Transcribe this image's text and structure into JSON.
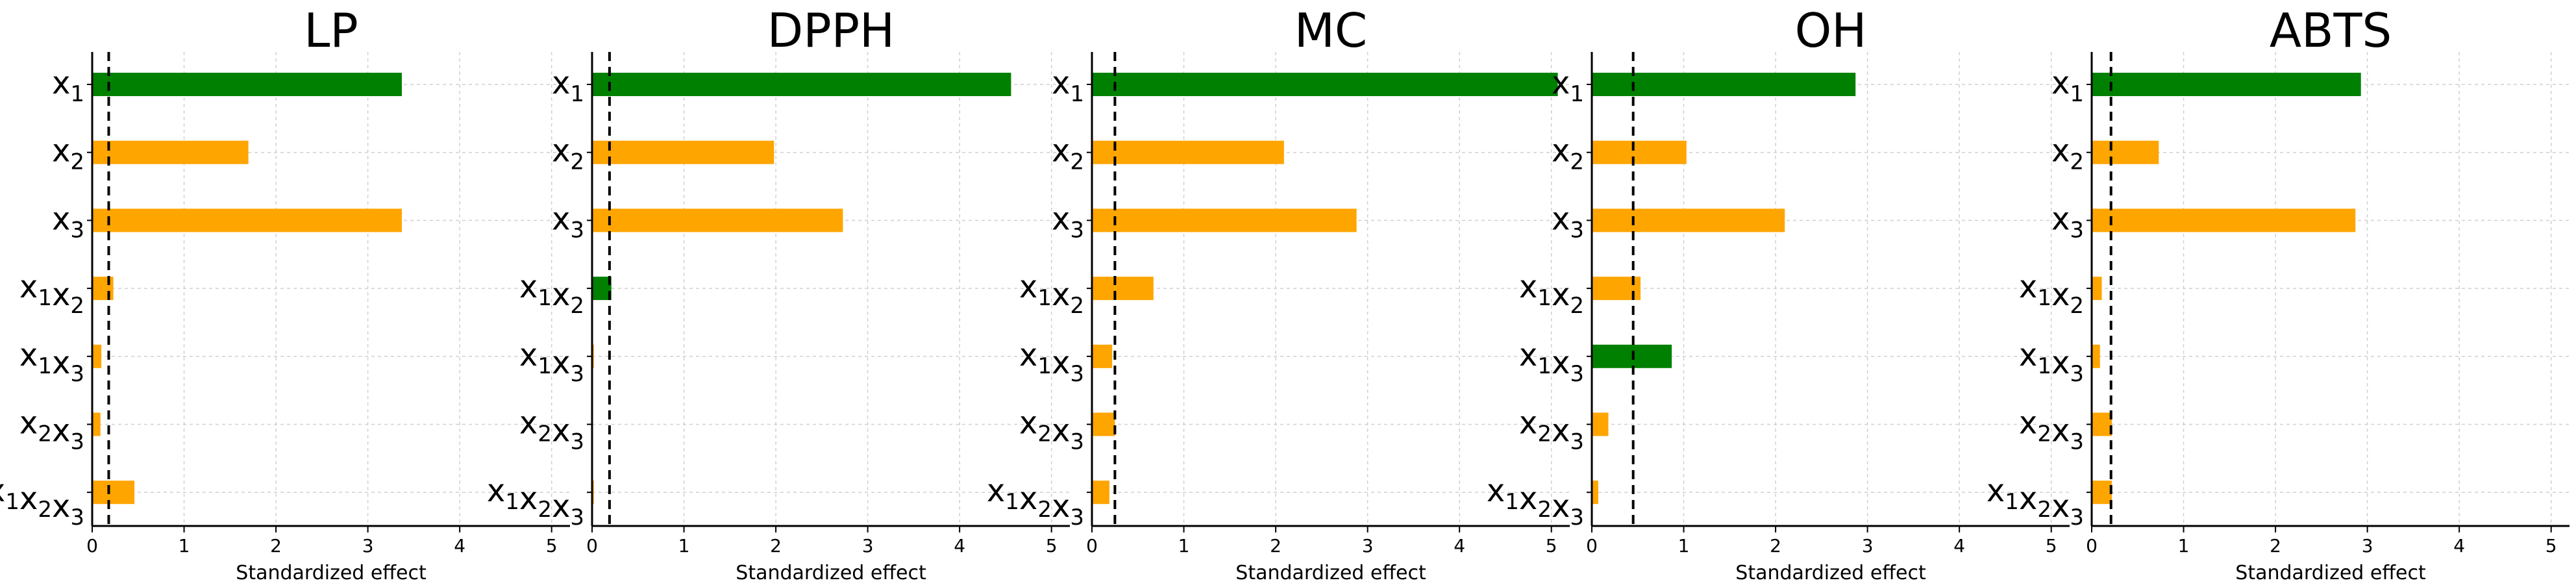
{
  "colors": {
    "significant": "#008000",
    "not_significant": "#FFA500",
    "grid": "#d0d0d0",
    "axis": "#000000",
    "threshold_line": "#000000"
  },
  "chart_data": [
    {
      "type": "bar",
      "orientation": "horizontal",
      "title": "LP",
      "xlabel": "Standardized effect",
      "ylabel": "",
      "xlim": [
        0,
        5.2
      ],
      "xticks": [
        0,
        1,
        2,
        3,
        4,
        5
      ],
      "grid": true,
      "threshold": 0.18,
      "categories": [
        {
          "base": "x",
          "subs": [
            "1"
          ]
        },
        {
          "base": "x",
          "subs": [
            "2"
          ]
        },
        {
          "base": "x",
          "subs": [
            "3"
          ]
        },
        {
          "base": "x",
          "subs": [
            "1",
            "2"
          ]
        },
        {
          "base": "x",
          "subs": [
            "1",
            "3"
          ]
        },
        {
          "base": "x",
          "subs": [
            "2",
            "3"
          ]
        },
        {
          "base": "x",
          "subs": [
            "1",
            "2",
            "3"
          ]
        }
      ],
      "values": [
        3.37,
        1.7,
        3.37,
        0.23,
        0.1,
        0.09,
        0.46
      ],
      "significant": [
        true,
        false,
        false,
        false,
        false,
        false,
        false
      ]
    },
    {
      "type": "bar",
      "orientation": "horizontal",
      "title": "DPPH",
      "xlabel": "Standardized effect",
      "ylabel": "",
      "xlim": [
        0,
        5.2
      ],
      "xticks": [
        0,
        1,
        2,
        3,
        4,
        5
      ],
      "grid": true,
      "threshold": 0.19,
      "categories": [
        {
          "base": "x",
          "subs": [
            "1"
          ]
        },
        {
          "base": "x",
          "subs": [
            "2"
          ]
        },
        {
          "base": "x",
          "subs": [
            "3"
          ]
        },
        {
          "base": "x",
          "subs": [
            "1",
            "2"
          ]
        },
        {
          "base": "x",
          "subs": [
            "1",
            "3"
          ]
        },
        {
          "base": "x",
          "subs": [
            "2",
            "3"
          ]
        },
        {
          "base": "x",
          "subs": [
            "1",
            "2",
            "3"
          ]
        }
      ],
      "values": [
        4.56,
        1.98,
        2.73,
        0.21,
        0.02,
        0.01,
        0.02
      ],
      "significant": [
        true,
        false,
        false,
        true,
        false,
        false,
        false
      ]
    },
    {
      "type": "bar",
      "orientation": "horizontal",
      "title": "MC",
      "xlabel": "Standardized effect",
      "ylabel": "",
      "xlim": [
        0,
        5.2
      ],
      "xticks": [
        0,
        1,
        2,
        3,
        4,
        5
      ],
      "grid": true,
      "threshold": 0.25,
      "categories": [
        {
          "base": "x",
          "subs": [
            "1"
          ]
        },
        {
          "base": "x",
          "subs": [
            "2"
          ]
        },
        {
          "base": "x",
          "subs": [
            "3"
          ]
        },
        {
          "base": "x",
          "subs": [
            "1",
            "2"
          ]
        },
        {
          "base": "x",
          "subs": [
            "1",
            "3"
          ]
        },
        {
          "base": "x",
          "subs": [
            "2",
            "3"
          ]
        },
        {
          "base": "x",
          "subs": [
            "1",
            "2",
            "3"
          ]
        }
      ],
      "values": [
        5.07,
        2.09,
        2.88,
        0.67,
        0.22,
        0.25,
        0.19
      ],
      "significant": [
        true,
        false,
        false,
        false,
        false,
        false,
        false
      ]
    },
    {
      "type": "bar",
      "orientation": "horizontal",
      "title": "OH",
      "xlabel": "Standardized effect",
      "ylabel": "",
      "xlim": [
        0,
        5.2
      ],
      "xticks": [
        0,
        1,
        2,
        3,
        4,
        5
      ],
      "grid": true,
      "threshold": 0.45,
      "categories": [
        {
          "base": "x",
          "subs": [
            "1"
          ]
        },
        {
          "base": "x",
          "subs": [
            "2"
          ]
        },
        {
          "base": "x",
          "subs": [
            "3"
          ]
        },
        {
          "base": "x",
          "subs": [
            "1",
            "2"
          ]
        },
        {
          "base": "x",
          "subs": [
            "1",
            "3"
          ]
        },
        {
          "base": "x",
          "subs": [
            "2",
            "3"
          ]
        },
        {
          "base": "x",
          "subs": [
            "1",
            "2",
            "3"
          ]
        }
      ],
      "values": [
        2.87,
        1.03,
        2.1,
        0.53,
        0.87,
        0.18,
        0.07
      ],
      "significant": [
        true,
        false,
        false,
        false,
        true,
        false,
        false
      ]
    },
    {
      "type": "bar",
      "orientation": "horizontal",
      "title": "ABTS",
      "xlabel": "Standardized effect",
      "ylabel": "",
      "xlim": [
        0,
        5.2
      ],
      "xticks": [
        0,
        1,
        2,
        3,
        4,
        5
      ],
      "grid": true,
      "threshold": 0.21,
      "categories": [
        {
          "base": "x",
          "subs": [
            "1"
          ]
        },
        {
          "base": "x",
          "subs": [
            "2"
          ]
        },
        {
          "base": "x",
          "subs": [
            "3"
          ]
        },
        {
          "base": "x",
          "subs": [
            "1",
            "2"
          ]
        },
        {
          "base": "x",
          "subs": [
            "1",
            "3"
          ]
        },
        {
          "base": "x",
          "subs": [
            "2",
            "3"
          ]
        },
        {
          "base": "x",
          "subs": [
            "1",
            "2",
            "3"
          ]
        }
      ],
      "values": [
        2.93,
        0.73,
        2.87,
        0.11,
        0.09,
        0.22,
        0.22
      ],
      "significant": [
        true,
        false,
        false,
        false,
        false,
        false,
        false
      ]
    }
  ]
}
